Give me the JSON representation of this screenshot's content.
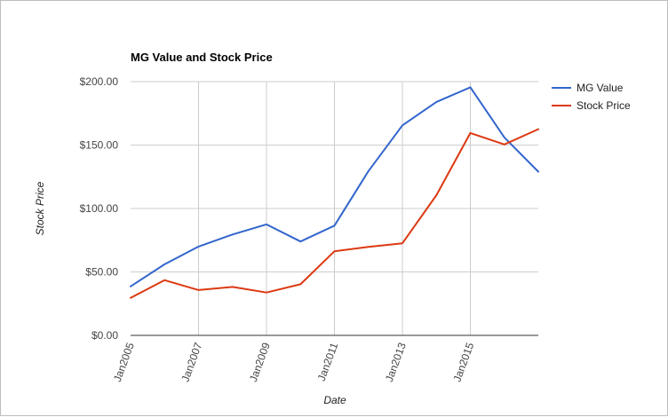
{
  "chart_data": {
    "type": "line",
    "title": "MG Value and Stock Price",
    "xlabel": "Date",
    "ylabel": "Stock Price",
    "x": [
      2005,
      2006,
      2007,
      2008,
      2009,
      2010,
      2011,
      2012,
      2013,
      2014,
      2015,
      2016,
      2017
    ],
    "xlim": [
      2005,
      2017
    ],
    "ylim": [
      0,
      200
    ],
    "x_ticks": [
      {
        "value": 2005,
        "label": "Jan2005"
      },
      {
        "value": 2007,
        "label": "Jan2007"
      },
      {
        "value": 2009,
        "label": "Jan2009"
      },
      {
        "value": 2011,
        "label": "Jan2011"
      },
      {
        "value": 2013,
        "label": "Jan2013"
      },
      {
        "value": 2015,
        "label": "Jan2015"
      }
    ],
    "y_ticks": [
      {
        "value": 0,
        "label": "$0.00"
      },
      {
        "value": 50,
        "label": "$50.00"
      },
      {
        "value": 100,
        "label": "$100.00"
      },
      {
        "value": 150,
        "label": "$150.00"
      },
      {
        "value": 200,
        "label": "$200.00"
      }
    ],
    "grid": true,
    "legend_position": "right",
    "series": [
      {
        "name": "MG Value",
        "color": "#3366cc",
        "values": [
          38.6,
          56,
          70,
          79.5,
          87.5,
          74,
          86.5,
          129.5,
          165.5,
          184,
          195.5,
          156,
          129
        ]
      },
      {
        "name": "Stock Price",
        "color": "#dc3912",
        "values": [
          29.6,
          43.5,
          35.7,
          38.2,
          33.8,
          40.3,
          66.3,
          69.8,
          72.6,
          110.5,
          159.5,
          150.5,
          162.5
        ]
      }
    ]
  }
}
